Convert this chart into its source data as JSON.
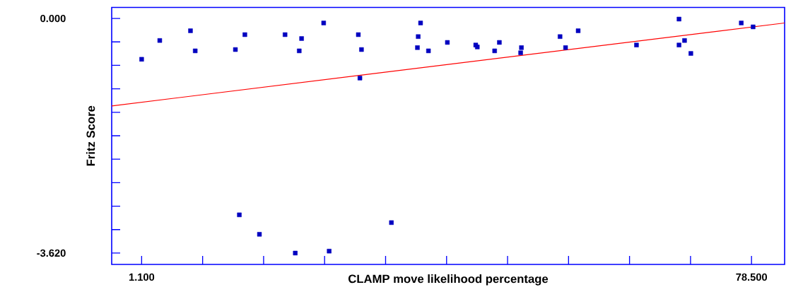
{
  "chart_data": {
    "type": "scatter",
    "xlabel": "CLAMP move likelihood percentage",
    "ylabel": "Fritz Score",
    "xlim": [
      -2.7,
      82.7
    ],
    "ylim": [
      -3.795,
      0.17
    ],
    "xticks": [
      {
        "value": 1.1,
        "label": "1.100"
      },
      {
        "value": 8.84,
        "label": null
      },
      {
        "value": 16.58,
        "label": null
      },
      {
        "value": 24.32,
        "label": null
      },
      {
        "value": 32.06,
        "label": null
      },
      {
        "value": 39.8,
        "label": null
      },
      {
        "value": 47.54,
        "label": null
      },
      {
        "value": 55.28,
        "label": null
      },
      {
        "value": 63.02,
        "label": null
      },
      {
        "value": 70.76,
        "label": null
      },
      {
        "value": 78.5,
        "label": "78.500"
      }
    ],
    "yticks": [
      {
        "value": 0,
        "label": "0.000"
      },
      {
        "value": -0.362,
        "label": null
      },
      {
        "value": -0.724,
        "label": null
      },
      {
        "value": -1.086,
        "label": null
      },
      {
        "value": -1.448,
        "label": null
      },
      {
        "value": -1.81,
        "label": null
      },
      {
        "value": -2.172,
        "label": null
      },
      {
        "value": -2.534,
        "label": null
      },
      {
        "value": -2.896,
        "label": null
      },
      {
        "value": -3.258,
        "label": null
      },
      {
        "value": -3.62,
        "label": "-3.620"
      }
    ],
    "series": [
      {
        "marker": "square",
        "color": "#0000c0",
        "x": [
          1.1,
          3.4,
          7.3,
          7.9,
          13.0,
          14.2,
          19.3,
          21.4,
          21.1,
          24.2,
          28.6,
          29.0,
          28.8,
          36.5,
          36.2,
          36.1,
          37.5,
          39.9,
          43.5,
          43.7,
          46.5,
          45.9,
          49.3,
          49.2,
          54.2,
          54.9,
          56.5,
          63.9,
          69.3,
          69.3,
          70.0,
          70.8,
          77.2,
          78.7,
          13.5,
          16.05,
          20.6,
          24.9,
          32.8
        ],
        "values": [
          -0.63,
          -0.34,
          -0.19,
          -0.5,
          -0.48,
          -0.25,
          -0.25,
          -0.31,
          -0.5,
          -0.07,
          -0.25,
          -0.48,
          -0.92,
          -0.07,
          -0.28,
          -0.45,
          -0.5,
          -0.37,
          -0.41,
          -0.44,
          -0.37,
          -0.5,
          -0.45,
          -0.53,
          -0.28,
          -0.45,
          -0.19,
          -0.41,
          -0.01,
          -0.41,
          -0.34,
          -0.54,
          -0.07,
          -0.13,
          -3.03,
          -3.33,
          -3.62,
          -3.59,
          -3.15
        ]
      },
      {
        "type": "line",
        "line_style": "solid",
        "color": "#ff0000",
        "x": [
          -2.7,
          82.7
        ],
        "values": [
          -1.35,
          -0.07
        ]
      }
    ]
  }
}
